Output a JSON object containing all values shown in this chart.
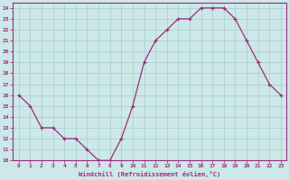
{
  "x": [
    0,
    1,
    2,
    3,
    4,
    5,
    6,
    7,
    8,
    9,
    10,
    11,
    12,
    13,
    14,
    15,
    16,
    17,
    18,
    19,
    20,
    21,
    22,
    23
  ],
  "y": [
    16,
    15,
    13,
    13,
    12,
    12,
    11,
    10,
    10,
    12,
    15,
    19,
    21,
    22,
    23,
    23,
    24,
    24,
    24,
    23,
    21,
    19,
    17,
    16
  ],
  "line_color": "#9b2d7f",
  "marker": "+",
  "xlabel": "Windchill (Refroidissement éolien,°C)",
  "xlim_min": -0.5,
  "xlim_max": 23.5,
  "ylim_min": 10,
  "ylim_max": 24.5,
  "yticks": [
    10,
    11,
    12,
    13,
    14,
    15,
    16,
    17,
    18,
    19,
    20,
    21,
    22,
    23,
    24
  ],
  "xticks": [
    0,
    1,
    2,
    3,
    4,
    5,
    6,
    7,
    8,
    9,
    10,
    11,
    12,
    13,
    14,
    15,
    16,
    17,
    18,
    19,
    20,
    21,
    22,
    23
  ],
  "bg_color": "#cce8e8",
  "grid_color": "#b0d0d0",
  "line_color2": "#9b2d7f",
  "tick_color": "#9b2d7f",
  "label_color": "#9b2d7f",
  "border_color": "#9b2d7f",
  "tick_fontsize": 4.5,
  "xlabel_fontsize": 5.0,
  "marker_size": 3,
  "linewidth": 0.9
}
